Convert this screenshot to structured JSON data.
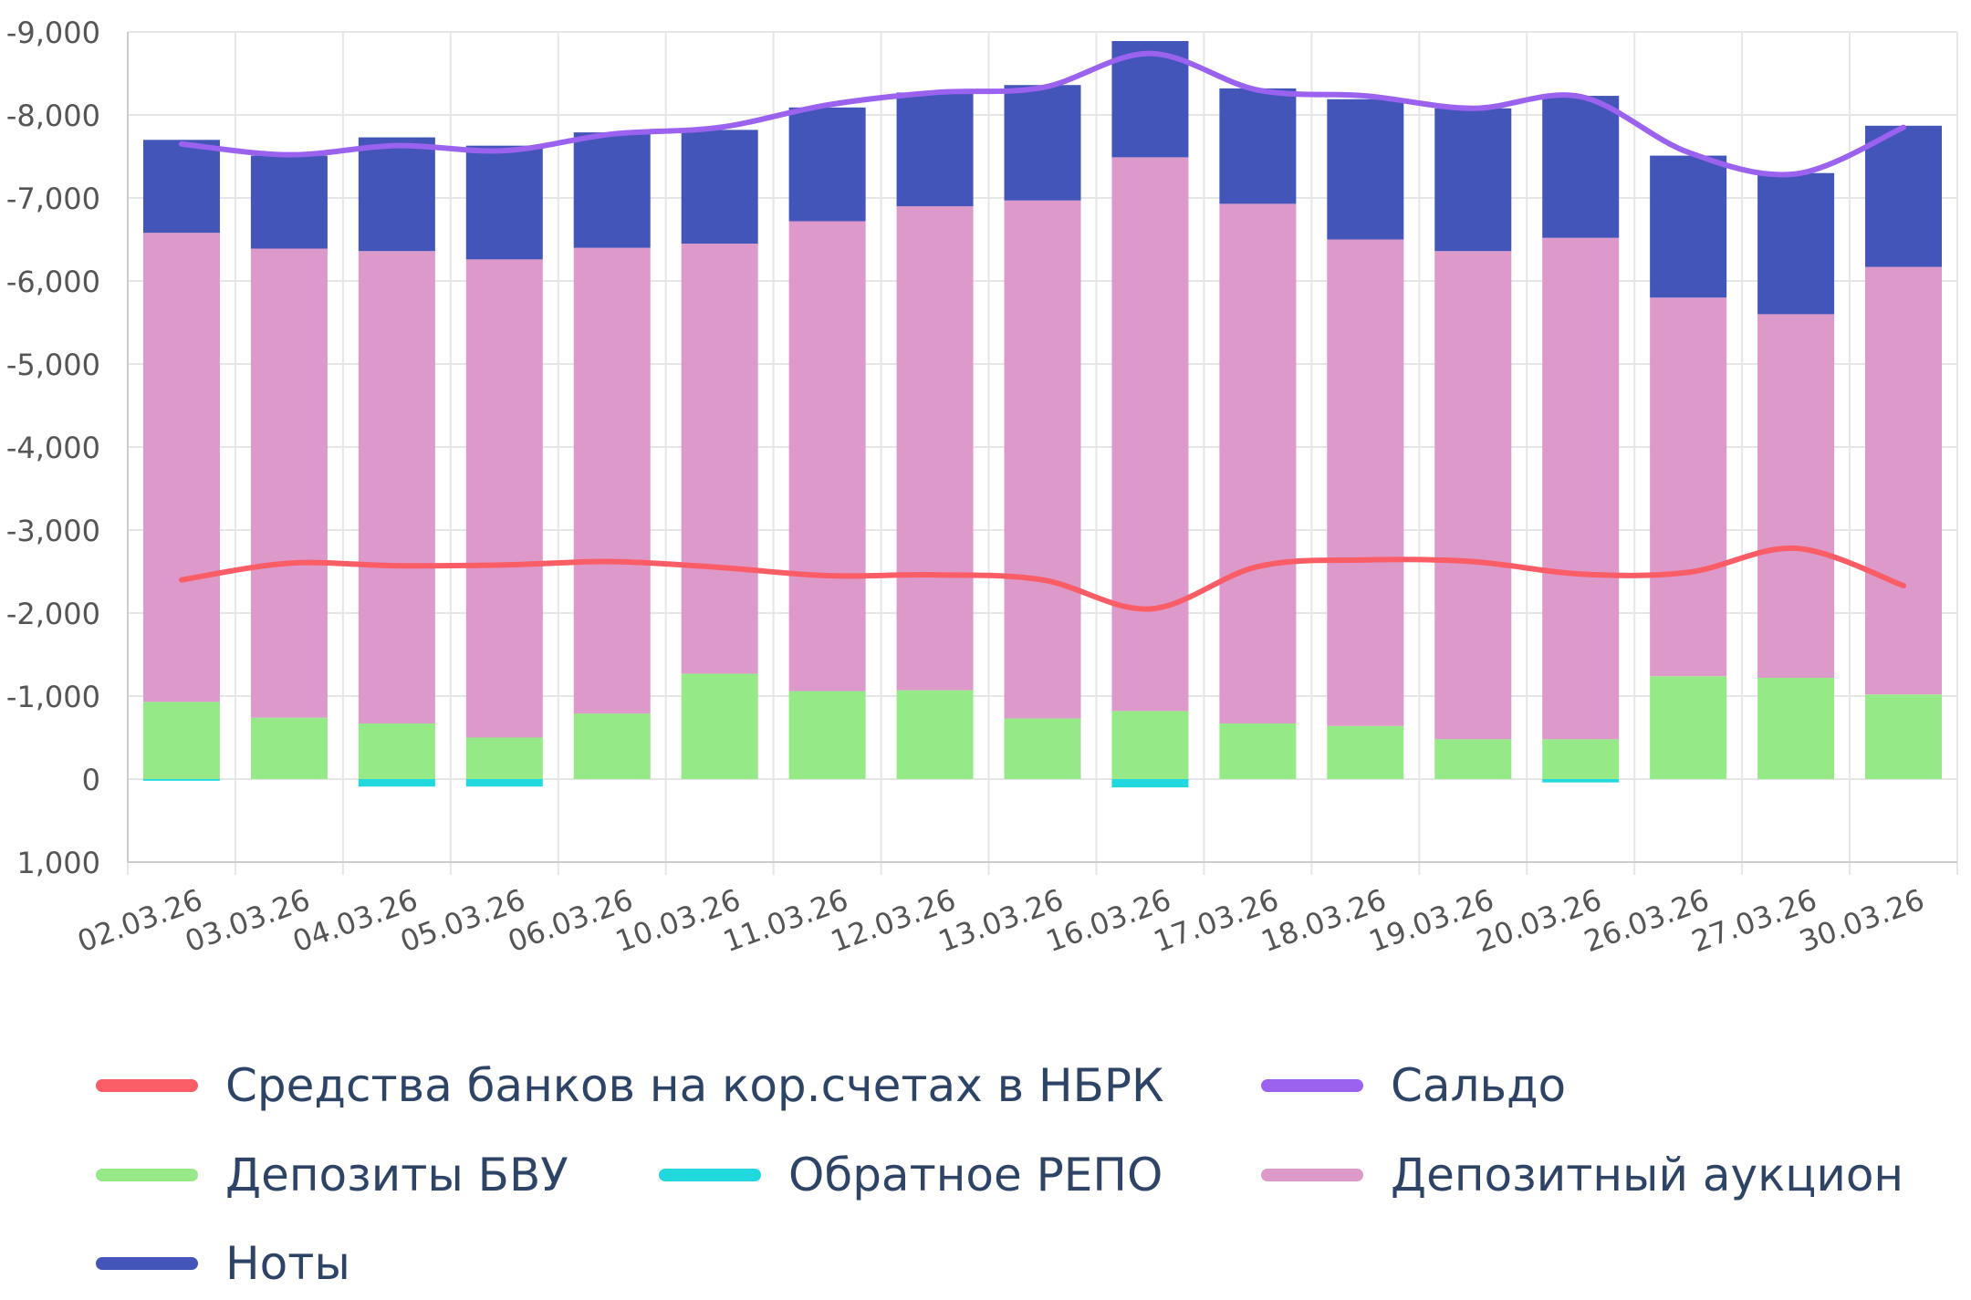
{
  "colors": {
    "reserves": "#fb5d66",
    "saldo": "#9b62f0",
    "deposits": "#95ea87",
    "repo": "#21d8de",
    "auction": "#dc99ca",
    "notes": "#4355b8",
    "grid": "#e6e6e6",
    "axis": "#cccccc",
    "tick_text": "#555555",
    "legend_text": "#2e4466"
  },
  "chart_data": {
    "type": "bar",
    "stacked": true,
    "y_reversed": true,
    "ylim": [
      1000,
      -9000
    ],
    "yticks": [
      -9000,
      -8000,
      -7000,
      -6000,
      -5000,
      -4000,
      -3000,
      -2000,
      -1000,
      0,
      1000
    ],
    "ytick_labels": [
      "-9,000",
      "-8,000",
      "-7,000",
      "-6,000",
      "-5,000",
      "-4,000",
      "-3,000",
      "-2,000",
      "-1,000",
      "0",
      "1,000"
    ],
    "grid": true,
    "legend_position": "bottom",
    "categories": [
      "02.03.26",
      "03.03.26",
      "04.03.26",
      "05.03.26",
      "06.03.26",
      "10.03.26",
      "11.03.26",
      "12.03.26",
      "13.03.26",
      "16.03.26",
      "17.03.26",
      "18.03.26",
      "19.03.26",
      "20.03.26",
      "26.03.26",
      "27.03.26",
      "30.03.26"
    ],
    "series": [
      {
        "key": "reserves",
        "name": "Средства банков на кор.счетах в НБРК",
        "type": "line",
        "values": [
          -2400,
          -2600,
          -2570,
          -2580,
          -2620,
          -2550,
          -2450,
          -2460,
          -2400,
          -2050,
          -2560,
          -2640,
          -2620,
          -2470,
          -2490,
          -2780,
          -2330
        ]
      },
      {
        "key": "saldo",
        "name": "Сальдо",
        "type": "line",
        "values": [
          -7650,
          -7520,
          -7630,
          -7570,
          -7770,
          -7850,
          -8120,
          -8270,
          -8330,
          -8740,
          -8300,
          -8230,
          -8080,
          -8220,
          -7550,
          -7290,
          -7850
        ]
      },
      {
        "key": "deposits",
        "name": "Депозиты БВУ",
        "type": "bar",
        "values": [
          -930,
          -740,
          -670,
          -500,
          -790,
          -1270,
          -1060,
          -1070,
          -730,
          -820,
          -670,
          -640,
          -480,
          -480,
          -1240,
          -1220,
          -1020
        ]
      },
      {
        "key": "repo",
        "name": "Обратное РЕПО",
        "type": "bar",
        "values": [
          20,
          0,
          90,
          90,
          0,
          0,
          0,
          0,
          0,
          100,
          0,
          0,
          0,
          40,
          0,
          0,
          0
        ]
      },
      {
        "key": "auction",
        "name": "Депозитный аукцион",
        "type": "bar",
        "values": [
          -5650,
          -5650,
          -5690,
          -5760,
          -5610,
          -5180,
          -5660,
          -5830,
          -6240,
          -6670,
          -6260,
          -5860,
          -5880,
          -6040,
          -4560,
          -4380,
          -5150
        ]
      },
      {
        "key": "notes",
        "name": "Ноты",
        "type": "bar",
        "values": [
          -1120,
          -1120,
          -1370,
          -1370,
          -1390,
          -1370,
          -1370,
          -1370,
          -1390,
          -1400,
          -1390,
          -1690,
          -1720,
          -1710,
          -1710,
          -1700,
          -1700
        ]
      }
    ]
  }
}
